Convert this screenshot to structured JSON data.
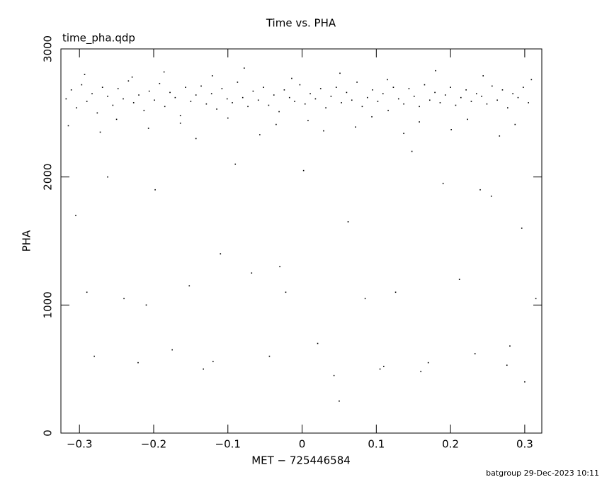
{
  "chart_data": {
    "type": "scatter",
    "title": "Time vs. PHA",
    "annotation": "time_pha.qdp",
    "x_label": "MET − 725446584",
    "y_label": "PHA",
    "footer": "batgroup 29-Dec-2023 10:11",
    "color": "#000000",
    "xlim": [
      -0.325,
      0.323
    ],
    "ylim": [
      0,
      3000
    ],
    "xticks": [
      {
        "value": -0.3,
        "label": "−0.3"
      },
      {
        "value": -0.2,
        "label": "−0.2"
      },
      {
        "value": -0.1,
        "label": "−0.1"
      },
      0,
      0.1,
      0.2,
      0.3
    ],
    "yticks": [
      0,
      1000,
      2000,
      3000
    ],
    "x": [
      -0.318,
      -0.311,
      -0.304,
      -0.297,
      -0.29,
      -0.283,
      -0.276,
      -0.269,
      -0.262,
      -0.255,
      -0.248,
      -0.241,
      -0.234,
      -0.227,
      -0.22,
      -0.213,
      -0.206,
      -0.199,
      -0.192,
      -0.185,
      -0.178,
      -0.171,
      -0.164,
      -0.157,
      -0.15,
      -0.143,
      -0.136,
      -0.129,
      -0.122,
      -0.115,
      -0.108,
      -0.101,
      -0.094,
      -0.087,
      -0.08,
      -0.073,
      -0.066,
      -0.059,
      -0.052,
      -0.045,
      -0.038,
      -0.031,
      -0.024,
      -0.017,
      -0.01,
      -0.003,
      0.004,
      0.011,
      0.018,
      0.025,
      0.032,
      0.039,
      0.046,
      0.053,
      0.06,
      0.067,
      0.074,
      0.081,
      0.088,
      0.095,
      0.102,
      0.109,
      0.116,
      0.123,
      0.13,
      0.137,
      0.144,
      0.151,
      0.158,
      0.165,
      0.172,
      0.179,
      0.186,
      0.193,
      0.2,
      0.207,
      0.214,
      0.221,
      0.228,
      0.235,
      0.242,
      0.249,
      0.256,
      0.263,
      0.27,
      0.277,
      0.284,
      0.291,
      0.298,
      0.305,
      -0.315,
      -0.293,
      -0.272,
      -0.25,
      -0.229,
      -0.207,
      -0.186,
      -0.164,
      -0.143,
      -0.121,
      -0.1,
      -0.078,
      -0.057,
      -0.035,
      -0.014,
      0.008,
      0.029,
      0.051,
      0.072,
      0.094,
      0.115,
      0.137,
      0.158,
      0.18,
      0.201,
      0.223,
      0.244,
      0.266,
      0.287,
      0.309,
      -0.305,
      -0.28,
      -0.262,
      -0.24,
      -0.221,
      -0.198,
      -0.175,
      -0.152,
      -0.133,
      -0.11,
      -0.09,
      -0.068,
      -0.044,
      -0.022,
      0.002,
      0.021,
      0.043,
      0.062,
      0.085,
      0.105,
      0.126,
      0.148,
      0.17,
      0.19,
      0.212,
      0.233,
      0.255,
      0.276,
      0.296,
      0.315,
      -0.29,
      -0.21,
      -0.12,
      -0.03,
      0.05,
      0.11,
      0.16,
      0.24,
      0.28,
      0.3
    ],
    "values": [
      2610,
      2680,
      2540,
      2720,
      2590,
      2650,
      2500,
      2700,
      2630,
      2560,
      2690,
      2610,
      2750,
      2580,
      2640,
      2520,
      2670,
      2600,
      2730,
      2550,
      2660,
      2620,
      2480,
      2700,
      2590,
      2640,
      2710,
      2570,
      2650,
      2530,
      2690,
      2610,
      2580,
      2740,
      2620,
      2550,
      2670,
      2600,
      2700,
      2560,
      2640,
      2510,
      2680,
      2620,
      2590,
      2720,
      2570,
      2650,
      2610,
      2690,
      2540,
      2630,
      2700,
      2580,
      2660,
      2600,
      2740,
      2550,
      2620,
      2680,
      2590,
      2650,
      2520,
      2700,
      2610,
      2570,
      2690,
      2630,
      2550,
      2720,
      2600,
      2660,
      2580,
      2640,
      2700,
      2560,
      2620,
      2680,
      2590,
      2650,
      2630,
      2570,
      2710,
      2600,
      2680,
      2540,
      2650,
      2620,
      2700,
      2580,
      2400,
      2800,
      2350,
      2450,
      2780,
      2380,
      2820,
      2420,
      2300,
      2790,
      2460,
      2850,
      2330,
      2410,
      2770,
      2440,
      2360,
      2810,
      2390,
      2470,
      2760,
      2340,
      2430,
      2830,
      2370,
      2450,
      2790,
      2320,
      2410,
      2760,
      1700,
      600,
      2000,
      1050,
      550,
      1900,
      650,
      1150,
      500,
      1400,
      2100,
      1250,
      600,
      1100,
      2050,
      700,
      450,
      1650,
      1050,
      500,
      1100,
      2200,
      550,
      1950,
      1200,
      620,
      1850,
      530,
      1600,
      1050,
      1100,
      1000,
      560,
      1300,
      250,
      520,
      480,
      1900,
      680,
      400
    ]
  }
}
